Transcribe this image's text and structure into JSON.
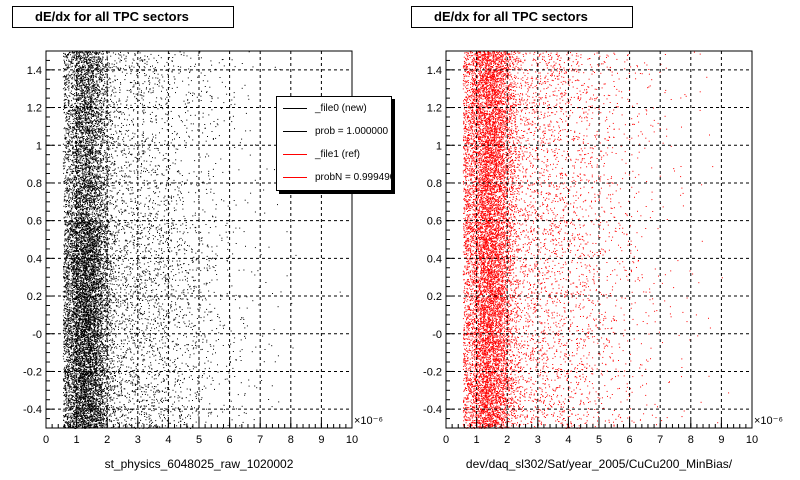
{
  "chart_data": [
    {
      "type": "scatter",
      "title": "dE/dx for all TPC sectors",
      "xlabel": "st_physics_6048025_raw_1020002",
      "x_exponent": "×10⁻⁶",
      "xlim": [
        0,
        10
      ],
      "ylim": [
        -0.5,
        1.5
      ],
      "x_ticks": [
        "0",
        "1",
        "2",
        "3",
        "4",
        "5",
        "6",
        "7",
        "8",
        "9",
        "10"
      ],
      "y_ticks": [
        "-0.4",
        "-0.2",
        "-0",
        "0.2",
        "0.4",
        "0.6",
        "0.8",
        "1",
        "1.2",
        "1.4"
      ],
      "grid": true,
      "color": "#000000",
      "legend": {
        "position": "top-right",
        "entries": [
          {
            "label": "_file0 (new)",
            "color": "#000000"
          },
          {
            "label": "prob = 1.000000",
            "color": "#000000"
          },
          {
            "label": "_file1 (ref)",
            "color": "#ff0000"
          },
          {
            "label": "probN = 0.999490",
            "color": "#ff0000"
          }
        ]
      },
      "density": {
        "x_mode": 1.3,
        "x_spread": 0.55,
        "tail_to": 10,
        "dense_y_range": [
          -0.5,
          0.6
        ],
        "note": "Dense vertical band of points centered near x=1.3e-6 over full y range"
      }
    },
    {
      "type": "scatter",
      "title": "dE/dx for all TPC sectors",
      "xlabel": "dev/daq_sl302/Sat/year_2005/CuCu200_MinBias/",
      "x_exponent": "×10⁻⁶",
      "xlim": [
        0,
        10
      ],
      "ylim": [
        -0.5,
        1.5
      ],
      "x_ticks": [
        "0",
        "1",
        "2",
        "3",
        "4",
        "5",
        "6",
        "7",
        "8",
        "9",
        "10"
      ],
      "y_ticks": [
        "-0.4",
        "-0.2",
        "-0",
        "0.2",
        "0.4",
        "0.6",
        "0.8",
        "1",
        "1.2",
        "1.4"
      ],
      "grid": true,
      "color": "#ff0000",
      "density": {
        "x_mode": 1.4,
        "x_spread": 0.6,
        "tail_to": 10
      }
    }
  ]
}
